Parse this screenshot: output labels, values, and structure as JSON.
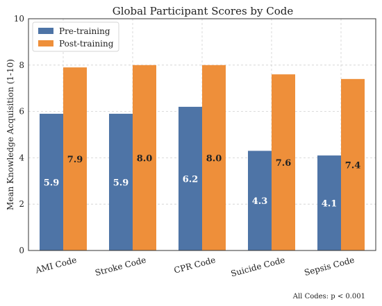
{
  "chart_data": {
    "type": "bar",
    "title": "Global Participant Scores by Code",
    "xlabel": "",
    "ylabel": "Mean Knowledge Acquisition (1-10)",
    "ylim": [
      0,
      10
    ],
    "yticks": [
      0,
      2,
      4,
      6,
      8,
      10
    ],
    "grid": true,
    "legend_position": "top-left",
    "categories": [
      "AMI Code",
      "Stroke Code",
      "CPR Code",
      "Suicide Code",
      "Sepsis Code"
    ],
    "series": [
      {
        "name": "Pre-training",
        "color": "#4e74a6",
        "values": [
          5.9,
          5.9,
          6.2,
          4.3,
          4.1
        ],
        "labels": [
          "5.9",
          "5.9",
          "6.2",
          "4.3",
          "4.1"
        ]
      },
      {
        "name": "Post-training",
        "color": "#ee8f3a",
        "values": [
          7.9,
          8.0,
          8.0,
          7.6,
          7.4
        ],
        "labels": [
          "7.9",
          "8.0",
          "8.0",
          "7.6",
          "7.4"
        ]
      }
    ],
    "annotation": "All Codes: p < 0.001"
  }
}
